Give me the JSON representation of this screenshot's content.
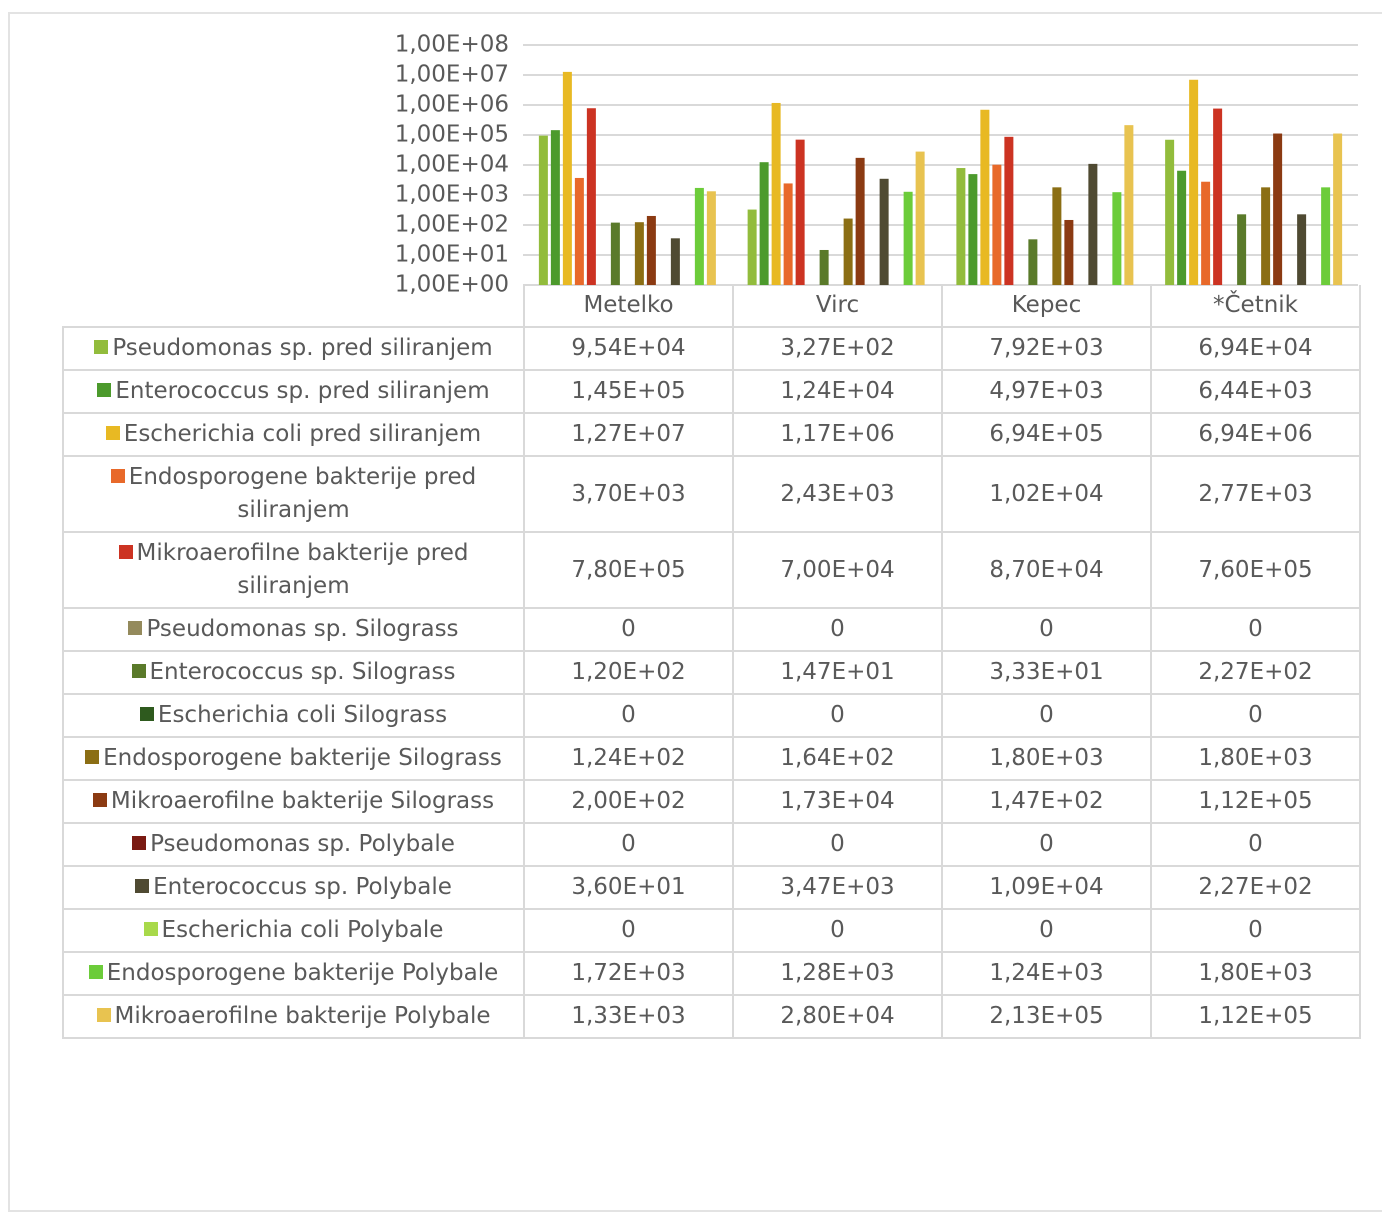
{
  "chart_data": {
    "type": "bar",
    "log": true,
    "grid": true,
    "categories": [
      "Metelko",
      "Virc",
      "Kepec",
      "*Četnik"
    ],
    "ylim": [
      1,
      100000000
    ],
    "yticks": [
      {
        "value": 1,
        "label": "1,00E+00"
      },
      {
        "value": 10,
        "label": "1,00E+01"
      },
      {
        "value": 100,
        "label": "1,00E+02"
      },
      {
        "value": 1000,
        "label": "1,00E+03"
      },
      {
        "value": 10000,
        "label": "1,00E+04"
      },
      {
        "value": 100000,
        "label": "1,00E+05"
      },
      {
        "value": 1000000,
        "label": "1,00E+06"
      },
      {
        "value": 10000000,
        "label": "1,00E+07"
      },
      {
        "value": 100000000,
        "label": "1,00E+08"
      }
    ],
    "series": [
      {
        "name": "Pseudomonas sp. pred siliranjem",
        "color": "#92bc3c",
        "values": [
          95400,
          327,
          7920,
          69400
        ],
        "value_labels": [
          "9,54E+04",
          "3,27E+02",
          "7,92E+03",
          "6,94E+04"
        ]
      },
      {
        "name": "Enterococcus sp. pred siliranjem",
        "color": "#4c9a2c",
        "values": [
          145000,
          12400,
          4970,
          6440
        ],
        "value_labels": [
          "1,45E+05",
          "1,24E+04",
          "4,97E+03",
          "6,44E+03"
        ]
      },
      {
        "name": "Escherichia coli pred siliranjem",
        "color": "#e8b923",
        "values": [
          12700000,
          1170000,
          694000,
          6940000
        ],
        "value_labels": [
          "1,27E+07",
          "1,17E+06",
          "6,94E+05",
          "6,94E+06"
        ]
      },
      {
        "name": "Endosporogene bakterije pred siliranjem",
        "color": "#e8692a",
        "values": [
          3700,
          2430,
          10200,
          2770
        ],
        "value_labels": [
          "3,70E+03",
          "2,43E+03",
          "1,02E+04",
          "2,77E+03"
        ]
      },
      {
        "name": "Mikroaerofilne bakterije pred siliranjem",
        "color": "#cc3322",
        "values": [
          780000,
          70000,
          87000,
          760000
        ],
        "value_labels": [
          "7,80E+05",
          "7,00E+04",
          "8,70E+04",
          "7,60E+05"
        ]
      },
      {
        "name": "Pseudomonas sp. Silograss",
        "color": "#948a5c",
        "values": [
          0,
          0,
          0,
          0
        ],
        "value_labels": [
          "0",
          "0",
          "0",
          "0"
        ]
      },
      {
        "name": "Enterococcus sp. Silograss",
        "color": "#5a7a2a",
        "values": [
          120,
          14.7,
          33.3,
          227
        ],
        "value_labels": [
          "1,20E+02",
          "1,47E+01",
          "3,33E+01",
          "2,27E+02"
        ]
      },
      {
        "name": "Escherichia coli Silograss",
        "color": "#2e5a1e",
        "values": [
          0,
          0,
          0,
          0
        ],
        "value_labels": [
          "0",
          "0",
          "0",
          "0"
        ]
      },
      {
        "name": "Endosporogene bakterije Silograss",
        "color": "#8b6e14",
        "values": [
          124,
          164,
          1800,
          1800
        ],
        "value_labels": [
          "1,24E+02",
          "1,64E+02",
          "1,80E+03",
          "1,80E+03"
        ]
      },
      {
        "name": "Mikroaerofilne bakterije Silograss",
        "color": "#8b3a12",
        "values": [
          200,
          17300,
          147,
          112000
        ],
        "value_labels": [
          "2,00E+02",
          "1,73E+04",
          "1,47E+02",
          "1,12E+05"
        ]
      },
      {
        "name": "Pseudomonas sp. Polybale",
        "color": "#7a1a12",
        "values": [
          0,
          0,
          0,
          0
        ],
        "value_labels": [
          "0",
          "0",
          "0",
          "0"
        ]
      },
      {
        "name": "Enterococcus sp. Polybale",
        "color": "#4f4a32",
        "values": [
          36,
          3470,
          10900,
          227
        ],
        "value_labels": [
          "3,60E+01",
          "3,47E+03",
          "1,09E+04",
          "2,27E+02"
        ]
      },
      {
        "name": "Escherichia coli Polybale",
        "color": "#a8d94a",
        "values": [
          0,
          0,
          0,
          0
        ],
        "value_labels": [
          "0",
          "0",
          "0",
          "0"
        ]
      },
      {
        "name": "Endosporogene bakterije Polybale",
        "color": "#6ccc3a",
        "values": [
          1720,
          1280,
          1240,
          1800
        ],
        "value_labels": [
          "1,72E+03",
          "1,28E+03",
          "1,24E+03",
          "1,80E+03"
        ]
      },
      {
        "name": "Mikroaerofilne bakterije Polybale",
        "color": "#e8c350",
        "values": [
          1330,
          28000,
          213000,
          112000
        ],
        "value_labels": [
          "1,33E+03",
          "2,80E+04",
          "2,13E+05",
          "1,12E+05"
        ]
      }
    ]
  }
}
